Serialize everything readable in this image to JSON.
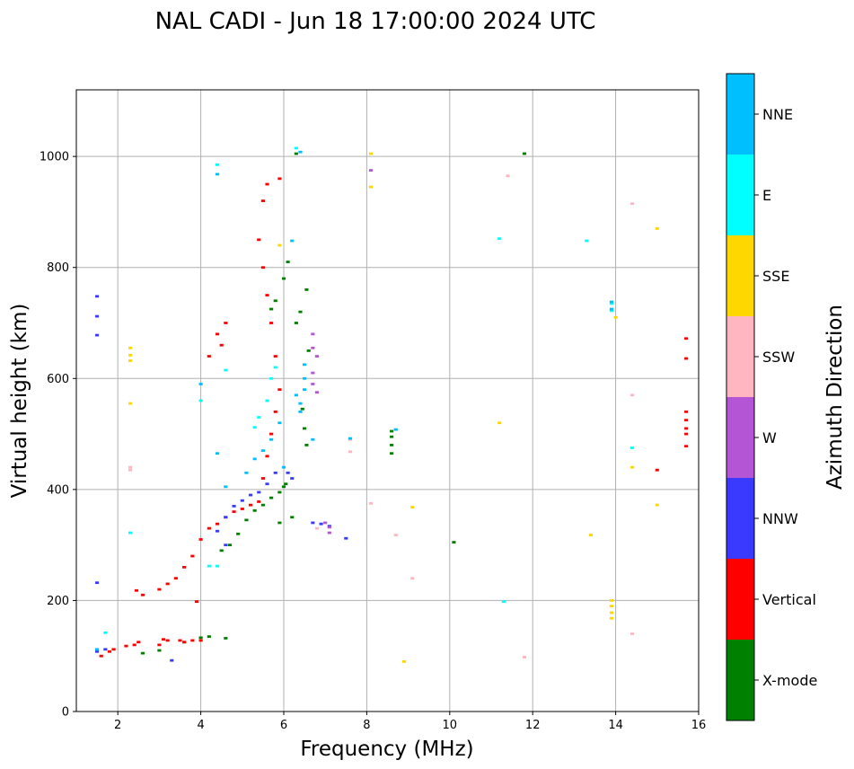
{
  "chart_data": {
    "type": "scatter",
    "title": "NAL CADI - Jun 18 17:00:00 2024 UTC",
    "xlabel": "Frequency (MHz)",
    "ylabel": "Virtual height (km)",
    "xlim": [
      1,
      16
    ],
    "ylim": [
      0,
      1120
    ],
    "xticks": [
      2,
      4,
      6,
      8,
      10,
      12,
      14,
      16
    ],
    "yticks": [
      0,
      200,
      400,
      600,
      800,
      1000
    ],
    "grid": true,
    "colorbar": {
      "label": "Azimuth Direction",
      "categories": [
        {
          "name": "X-mode",
          "color": "#008000"
        },
        {
          "name": "Vertical",
          "color": "#ff0000"
        },
        {
          "name": "NNW",
          "color": "#3a3aff"
        },
        {
          "name": "W",
          "color": "#b455d6"
        },
        {
          "name": "SSW",
          "color": "#ffb6c1"
        },
        {
          "name": "SSE",
          "color": "#ffd700"
        },
        {
          "name": "E",
          "color": "#00ffff"
        },
        {
          "name": "NNE",
          "color": "#00bfff"
        }
      ]
    },
    "series": [
      {
        "name": "X-mode",
        "points": [
          [
            2.6,
            105
          ],
          [
            3.0,
            110
          ],
          [
            3.6,
            125
          ],
          [
            4.0,
            133
          ],
          [
            4.2,
            135
          ],
          [
            4.6,
            132
          ],
          [
            4.5,
            290
          ],
          [
            4.7,
            300
          ],
          [
            4.9,
            320
          ],
          [
            5.1,
            345
          ],
          [
            5.3,
            362
          ],
          [
            5.5,
            372
          ],
          [
            5.7,
            385
          ],
          [
            5.9,
            395
          ],
          [
            6.0,
            405
          ],
          [
            6.05,
            410
          ],
          [
            6.3,
            700
          ],
          [
            6.4,
            720
          ],
          [
            6.45,
            545
          ],
          [
            6.5,
            510
          ],
          [
            6.55,
            480
          ],
          [
            6.6,
            650
          ],
          [
            6.55,
            760
          ],
          [
            6.0,
            780
          ],
          [
            6.1,
            810
          ],
          [
            5.7,
            725
          ],
          [
            5.8,
            740
          ],
          [
            6.2,
            350
          ],
          [
            5.9,
            340
          ],
          [
            8.6,
            465
          ],
          [
            8.6,
            480
          ],
          [
            8.6,
            495
          ],
          [
            8.6,
            505
          ],
          [
            10.1,
            305
          ],
          [
            11.8,
            1005
          ],
          [
            6.3,
            1005
          ]
        ]
      },
      {
        "name": "Vertical",
        "points": [
          [
            1.6,
            100
          ],
          [
            1.8,
            108
          ],
          [
            1.9,
            112
          ],
          [
            2.2,
            118
          ],
          [
            2.4,
            120
          ],
          [
            2.5,
            125
          ],
          [
            3.0,
            120
          ],
          [
            3.1,
            130
          ],
          [
            3.2,
            128
          ],
          [
            3.5,
            128
          ],
          [
            3.6,
            125
          ],
          [
            3.8,
            128
          ],
          [
            4.0,
            128
          ],
          [
            4.2,
            330
          ],
          [
            4.4,
            338
          ],
          [
            4.6,
            350
          ],
          [
            4.8,
            360
          ],
          [
            5.0,
            365
          ],
          [
            5.2,
            372
          ],
          [
            5.4,
            378
          ],
          [
            5.5,
            420
          ],
          [
            5.6,
            460
          ],
          [
            5.7,
            500
          ],
          [
            5.8,
            540
          ],
          [
            5.9,
            580
          ],
          [
            5.8,
            640
          ],
          [
            5.7,
            700
          ],
          [
            5.6,
            750
          ],
          [
            5.5,
            800
          ],
          [
            5.4,
            850
          ],
          [
            5.5,
            920
          ],
          [
            5.6,
            950
          ],
          [
            5.9,
            960
          ],
          [
            4.6,
            700
          ],
          [
            4.4,
            680
          ],
          [
            4.5,
            660
          ],
          [
            4.2,
            640
          ],
          [
            4.0,
            310
          ],
          [
            3.8,
            280
          ],
          [
            3.6,
            260
          ],
          [
            3.4,
            240
          ],
          [
            3.2,
            230
          ],
          [
            3.0,
            220
          ],
          [
            2.45,
            218
          ],
          [
            2.6,
            210
          ],
          [
            3.9,
            198
          ],
          [
            15.7,
            672
          ],
          [
            15.7,
            636
          ],
          [
            15.7,
            540
          ],
          [
            15.7,
            525
          ],
          [
            15.7,
            510
          ],
          [
            15.7,
            500
          ],
          [
            15.7,
            478
          ],
          [
            15.0,
            435
          ]
        ]
      },
      {
        "name": "NNW",
        "points": [
          [
            1.5,
            748
          ],
          [
            1.5,
            712
          ],
          [
            1.5,
            678
          ],
          [
            1.5,
            232
          ],
          [
            1.5,
            108
          ],
          [
            1.7,
            112
          ],
          [
            3.3,
            92
          ],
          [
            4.6,
            350
          ],
          [
            4.8,
            370
          ],
          [
            5.0,
            380
          ],
          [
            5.2,
            390
          ],
          [
            5.4,
            395
          ],
          [
            5.6,
            410
          ],
          [
            5.8,
            430
          ],
          [
            6.1,
            430
          ],
          [
            6.2,
            420
          ],
          [
            6.7,
            340
          ],
          [
            6.9,
            338
          ],
          [
            7.1,
            334
          ],
          [
            7.5,
            312
          ],
          [
            4.4,
            325
          ],
          [
            4.6,
            300
          ]
        ]
      },
      {
        "name": "W",
        "points": [
          [
            6.7,
            680
          ],
          [
            6.7,
            655
          ],
          [
            6.8,
            640
          ],
          [
            6.7,
            610
          ],
          [
            6.7,
            590
          ],
          [
            6.8,
            575
          ],
          [
            7.0,
            340
          ],
          [
            7.1,
            332
          ],
          [
            7.1,
            322
          ],
          [
            8.1,
            975
          ]
        ]
      },
      {
        "name": "SSW",
        "points": [
          [
            2.3,
            440
          ],
          [
            2.3,
            435
          ],
          [
            7.6,
            490
          ],
          [
            7.6,
            468
          ],
          [
            8.1,
            375
          ],
          [
            8.7,
            318
          ],
          [
            9.1,
            240
          ],
          [
            11.4,
            965
          ],
          [
            14.4,
            915
          ],
          [
            14.4,
            570
          ],
          [
            14.4,
            140
          ],
          [
            11.8,
            98
          ],
          [
            6.8,
            330
          ]
        ]
      },
      {
        "name": "SSE",
        "points": [
          [
            2.3,
            655
          ],
          [
            2.3,
            642
          ],
          [
            2.3,
            632
          ],
          [
            2.3,
            555
          ],
          [
            5.9,
            840
          ],
          [
            8.1,
            1005
          ],
          [
            8.1,
            945
          ],
          [
            8.9,
            90
          ],
          [
            9.1,
            368
          ],
          [
            11.2,
            520
          ],
          [
            13.4,
            318
          ],
          [
            13.9,
            200
          ],
          [
            13.9,
            190
          ],
          [
            13.9,
            178
          ],
          [
            13.9,
            168
          ],
          [
            14.0,
            710
          ],
          [
            14.4,
            440
          ],
          [
            15.0,
            870
          ],
          [
            15.0,
            372
          ]
        ]
      },
      {
        "name": "E",
        "points": [
          [
            2.3,
            322
          ],
          [
            1.7,
            142
          ],
          [
            4.0,
            560
          ],
          [
            4.4,
            985
          ],
          [
            4.6,
            615
          ],
          [
            4.2,
            262
          ],
          [
            4.4,
            262
          ],
          [
            5.3,
            512
          ],
          [
            5.4,
            530
          ],
          [
            5.6,
            560
          ],
          [
            5.7,
            600
          ],
          [
            5.8,
            620
          ],
          [
            6.3,
            1015
          ],
          [
            11.2,
            852
          ],
          [
            13.3,
            848
          ],
          [
            13.9,
            735
          ],
          [
            13.9,
            722
          ],
          [
            14.4,
            475
          ],
          [
            11.3,
            198
          ]
        ]
      },
      {
        "name": "NNE",
        "points": [
          [
            1.5,
            112
          ],
          [
            4.4,
            968
          ],
          [
            4.4,
            465
          ],
          [
            4.0,
            590
          ],
          [
            4.6,
            405
          ],
          [
            5.1,
            430
          ],
          [
            5.3,
            455
          ],
          [
            5.5,
            470
          ],
          [
            5.7,
            490
          ],
          [
            5.9,
            520
          ],
          [
            6.0,
            440
          ],
          [
            6.2,
            848
          ],
          [
            6.3,
            570
          ],
          [
            6.4,
            555
          ],
          [
            6.4,
            540
          ],
          [
            6.5,
            625
          ],
          [
            6.5,
            600
          ],
          [
            6.5,
            580
          ],
          [
            6.7,
            490
          ],
          [
            7.6,
            492
          ],
          [
            8.7,
            508
          ],
          [
            13.9,
            738
          ],
          [
            13.9,
            725
          ],
          [
            6.4,
            1008
          ]
        ]
      }
    ]
  }
}
